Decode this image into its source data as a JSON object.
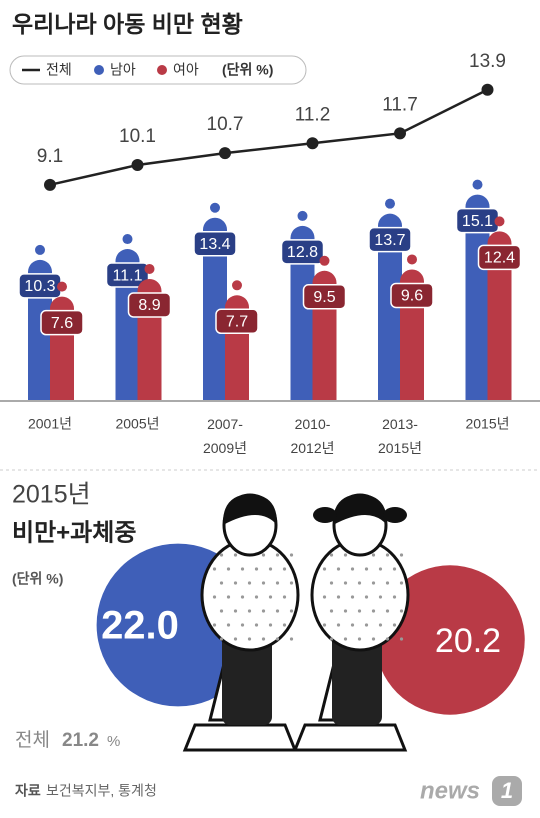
{
  "chart_data": [
    {
      "type": "bar",
      "title": "우리나라 아동 비만 현황",
      "unit_note": "(단위 %)",
      "categories": [
        "2001년",
        "2005년",
        "2007-2009년",
        "2010-2012년",
        "2013-2015년",
        "2015년"
      ],
      "series": [
        {
          "name": "전체",
          "type": "line",
          "color": "#222222",
          "values": [
            9.1,
            10.1,
            10.7,
            11.2,
            11.7,
            13.9
          ]
        },
        {
          "name": "남아",
          "type": "bar",
          "color": "#3f5fb8",
          "label_color": "#2a3f86",
          "values": [
            10.3,
            11.1,
            13.4,
            12.8,
            13.7,
            15.1
          ]
        },
        {
          "name": "여아",
          "type": "bar",
          "color": "#b93a46",
          "label_color": "#8a2631",
          "values": [
            7.6,
            8.9,
            7.7,
            9.5,
            9.6,
            12.4
          ]
        }
      ]
    },
    {
      "type": "circle",
      "title": "2015년",
      "subtitle": "비만+과체중",
      "unit_note": "(단위 %)",
      "values": [
        22.0,
        20.2
      ],
      "value_labels": [
        "22.0",
        "20.2"
      ],
      "colors": [
        "#3f5fb8",
        "#b93a46"
      ],
      "total_label": "전체",
      "total_value": 21.2,
      "total_unit": "%"
    }
  ],
  "source": {
    "label": "자료",
    "text": "보건복지부, 통계청"
  },
  "logo": {
    "text": "news",
    "num": "1"
  }
}
